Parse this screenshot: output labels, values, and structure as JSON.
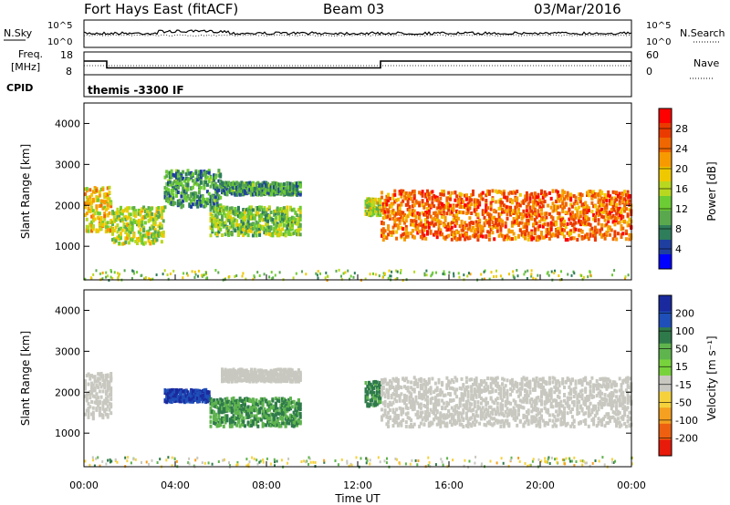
{
  "header": {
    "title": "Fort Hays East (fitACF)",
    "beam": "Beam 03",
    "date": "03/Mar/2016"
  },
  "top_panels": {
    "nsky_label": "N.Sky",
    "nsearch_label": "N.Search",
    "noise_left_ticks": [
      "10^5",
      "10^0"
    ],
    "noise_right_ticks": [
      "10^5",
      "10^0"
    ],
    "freq_label_1": "Freq.",
    "freq_label_2": "[MHz]",
    "freq_ticks": [
      "18",
      "8"
    ],
    "nave_label": "Nave",
    "nave_ticks": [
      "60",
      "0"
    ],
    "cpid_label": "CPID",
    "cpid_text": "themis -3300 IF"
  },
  "power_panel": {
    "ylabel": "Slant Range [km]",
    "yticks": [
      "1000",
      "2000",
      "3000",
      "4000"
    ],
    "colorbar_label": "Power [dB]",
    "colorbar_ticks": [
      "4",
      "8",
      "12",
      "16",
      "20",
      "24",
      "28"
    ],
    "colors": [
      "#0000ff",
      "#1f3fa0",
      "#2e7d5b",
      "#5aa84e",
      "#6ccc33",
      "#b8d820",
      "#f0c800",
      "#f79a00",
      "#f06600",
      "#ea3a00",
      "#ff0000"
    ]
  },
  "velocity_panel": {
    "ylabel": "Slant Range [km]",
    "yticks": [
      "1000",
      "2000",
      "3000",
      "4000"
    ],
    "colorbar_label": "Velocity [m s⁻¹]",
    "colorbar_ticks": [
      "200",
      "100",
      "50",
      "15",
      "-15",
      "-50",
      "-100",
      "-200"
    ],
    "colors": [
      "#1a2a9e",
      "#1f4fb8",
      "#2f7a4a",
      "#5fb44e",
      "#78d23c",
      "#c8c8c0",
      "#f5d23c",
      "#f5a020",
      "#ee6010",
      "#e81a0a"
    ]
  },
  "xaxis": {
    "label": "Time UT",
    "ticks": [
      "00:00",
      "04:00",
      "08:00",
      "12:00",
      "16:00",
      "20:00",
      "00:00"
    ]
  },
  "chart_data": {
    "type": "heatmap",
    "title": "Fort Hays East (fitACF)",
    "subtitle": "Beam 03  03/Mar/2016",
    "x_units": "hours UT",
    "xlim": [
      0,
      24
    ],
    "y_units": "km",
    "ylim": [
      180,
      4500
    ],
    "xlabel": "Time UT",
    "ylabel": "Slant Range [km]",
    "frequency_MHz": [
      {
        "t0": 0,
        "t1": 1,
        "value": 14
      },
      {
        "t0": 1,
        "t1": 13,
        "value": 11
      },
      {
        "t0": 13,
        "t1": 24,
        "value": 14
      }
    ],
    "cpid": "themis -3300 IF",
    "power_regions": [
      {
        "t0": 0.0,
        "t1": 1.2,
        "r0": 1400,
        "r1": 2500,
        "dB": 18
      },
      {
        "t0": 1.2,
        "t1": 3.5,
        "r0": 1100,
        "r1": 2000,
        "dB": 14
      },
      {
        "t0": 3.5,
        "t1": 6.0,
        "r0": 2000,
        "r1": 2900,
        "dB": 8
      },
      {
        "t0": 6.0,
        "t1": 9.5,
        "r0": 2300,
        "r1": 2600,
        "dB": 8
      },
      {
        "t0": 5.5,
        "t1": 9.5,
        "r0": 1300,
        "r1": 2000,
        "dB": 12
      },
      {
        "t0": 12.3,
        "t1": 13.0,
        "r0": 1800,
        "r1": 2200,
        "dB": 14
      },
      {
        "t0": 13.0,
        "t1": 24.0,
        "r0": 1200,
        "r1": 2400,
        "dB": 24
      }
    ],
    "velocity_regions": [
      {
        "t0": 0.0,
        "t1": 1.2,
        "r0": 1400,
        "r1": 2500,
        "v": 0
      },
      {
        "t0": 3.5,
        "t1": 5.5,
        "r0": 1800,
        "r1": 2100,
        "v": 150
      },
      {
        "t0": 5.5,
        "t1": 9.5,
        "r0": 1200,
        "r1": 1900,
        "v": 50
      },
      {
        "t0": 6.0,
        "t1": 9.5,
        "r0": 2300,
        "r1": 2600,
        "v": 0
      },
      {
        "t0": 12.3,
        "t1": 13.0,
        "r0": 1700,
        "r1": 2300,
        "v": 60
      },
      {
        "t0": 13.0,
        "t1": 24.0,
        "r0": 1200,
        "r1": 2400,
        "v": 0
      }
    ]
  }
}
